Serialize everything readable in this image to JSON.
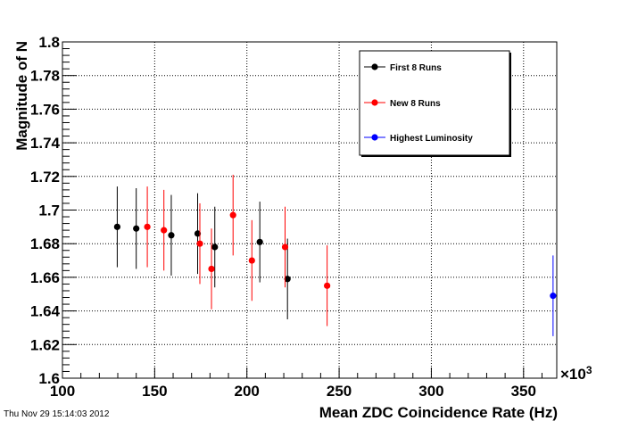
{
  "footer_timestamp": "Thu Nov 29 15:14:03 2012",
  "chart_data": {
    "type": "scatter",
    "xlabel": "Mean ZDC Coincidence Rate (Hz)",
    "ylabel": "Magnitude of N",
    "x_multiplier_label": "×10",
    "x_multiplier_exponent": "3",
    "xlim": [
      100,
      368
    ],
    "ylim": [
      1.6,
      1.8
    ],
    "x_ticks": [
      100,
      150,
      200,
      250,
      300,
      350
    ],
    "x_tick_labels": [
      "100",
      "150",
      "200",
      "250",
      "300",
      "350"
    ],
    "y_ticks": [
      1.6,
      1.62,
      1.64,
      1.66,
      1.68,
      1.7,
      1.72,
      1.74,
      1.76,
      1.78,
      1.8
    ],
    "y_tick_labels": [
      "1.6",
      "1.62",
      "1.64",
      "1.66",
      "1.68",
      "1.7",
      "1.72",
      "1.74",
      "1.76",
      "1.78",
      "1.8"
    ],
    "grid": true,
    "legend_position": "top-right",
    "series": [
      {
        "name": "First 8 Runs",
        "color": "#000000",
        "points": [
          {
            "x": 129.7,
            "y": 1.69,
            "err": 0.024
          },
          {
            "x": 140.0,
            "y": 1.689,
            "err": 0.024
          },
          {
            "x": 159.0,
            "y": 1.685,
            "err": 0.024
          },
          {
            "x": 173.3,
            "y": 1.686,
            "err": 0.024
          },
          {
            "x": 182.6,
            "y": 1.678,
            "err": 0.024
          },
          {
            "x": 207.0,
            "y": 1.681,
            "err": 0.024
          },
          {
            "x": 222.0,
            "y": 1.659,
            "err": 0.024
          }
        ]
      },
      {
        "name": "New 8 Runs",
        "color": "#ff0000",
        "points": [
          {
            "x": 146.0,
            "y": 1.69,
            "err": 0.024
          },
          {
            "x": 155.0,
            "y": 1.688,
            "err": 0.024
          },
          {
            "x": 174.5,
            "y": 1.68,
            "err": 0.024
          },
          {
            "x": 180.8,
            "y": 1.665,
            "err": 0.024
          },
          {
            "x": 192.5,
            "y": 1.697,
            "err": 0.024
          },
          {
            "x": 202.7,
            "y": 1.67,
            "err": 0.024
          },
          {
            "x": 220.7,
            "y": 1.678,
            "err": 0.024
          },
          {
            "x": 243.5,
            "y": 1.655,
            "err": 0.024
          }
        ]
      },
      {
        "name": "Highest Luminosity",
        "color": "#0000ff",
        "points": [
          {
            "x": 366.0,
            "y": 1.649,
            "err": 0.024
          }
        ]
      }
    ]
  }
}
